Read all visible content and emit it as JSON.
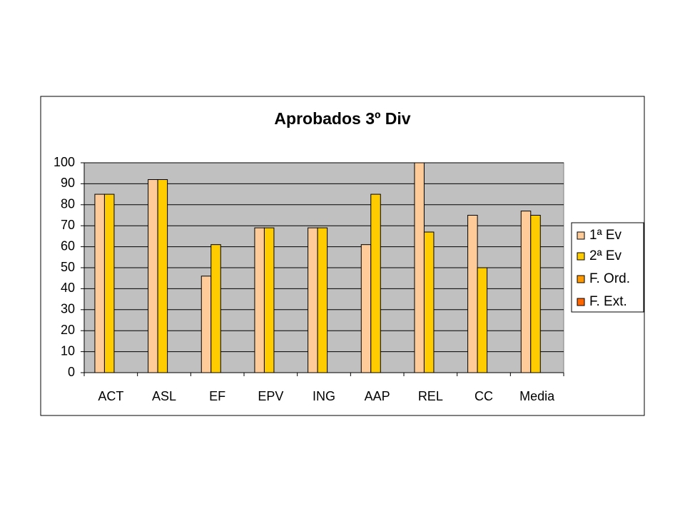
{
  "chart_data": {
    "type": "bar",
    "title": "Aprobados 3º Div",
    "categories": [
      "ACT",
      "ASL",
      "EF",
      "EPV",
      "ING",
      "AAP",
      "REL",
      "CC",
      "Media"
    ],
    "series": [
      {
        "name": "1ª Ev",
        "color": "#ffcc99",
        "values": [
          85,
          92,
          46,
          69,
          69,
          61,
          100,
          75,
          77
        ]
      },
      {
        "name": "2ª Ev",
        "color": "#ffcc00",
        "values": [
          85,
          92,
          61,
          69,
          69,
          85,
          67,
          50,
          75
        ]
      },
      {
        "name": "F. Ord.",
        "color": "#ff9900",
        "values": [
          null,
          null,
          null,
          null,
          null,
          null,
          null,
          null,
          null
        ]
      },
      {
        "name": "F. Ext.",
        "color": "#ff6600",
        "values": [
          null,
          null,
          null,
          null,
          null,
          null,
          null,
          null,
          null
        ]
      }
    ],
    "ylim": [
      0,
      100
    ],
    "yticks": [
      0,
      10,
      20,
      30,
      40,
      50,
      60,
      70,
      80,
      90,
      100
    ],
    "grid": true,
    "legend": "right"
  }
}
